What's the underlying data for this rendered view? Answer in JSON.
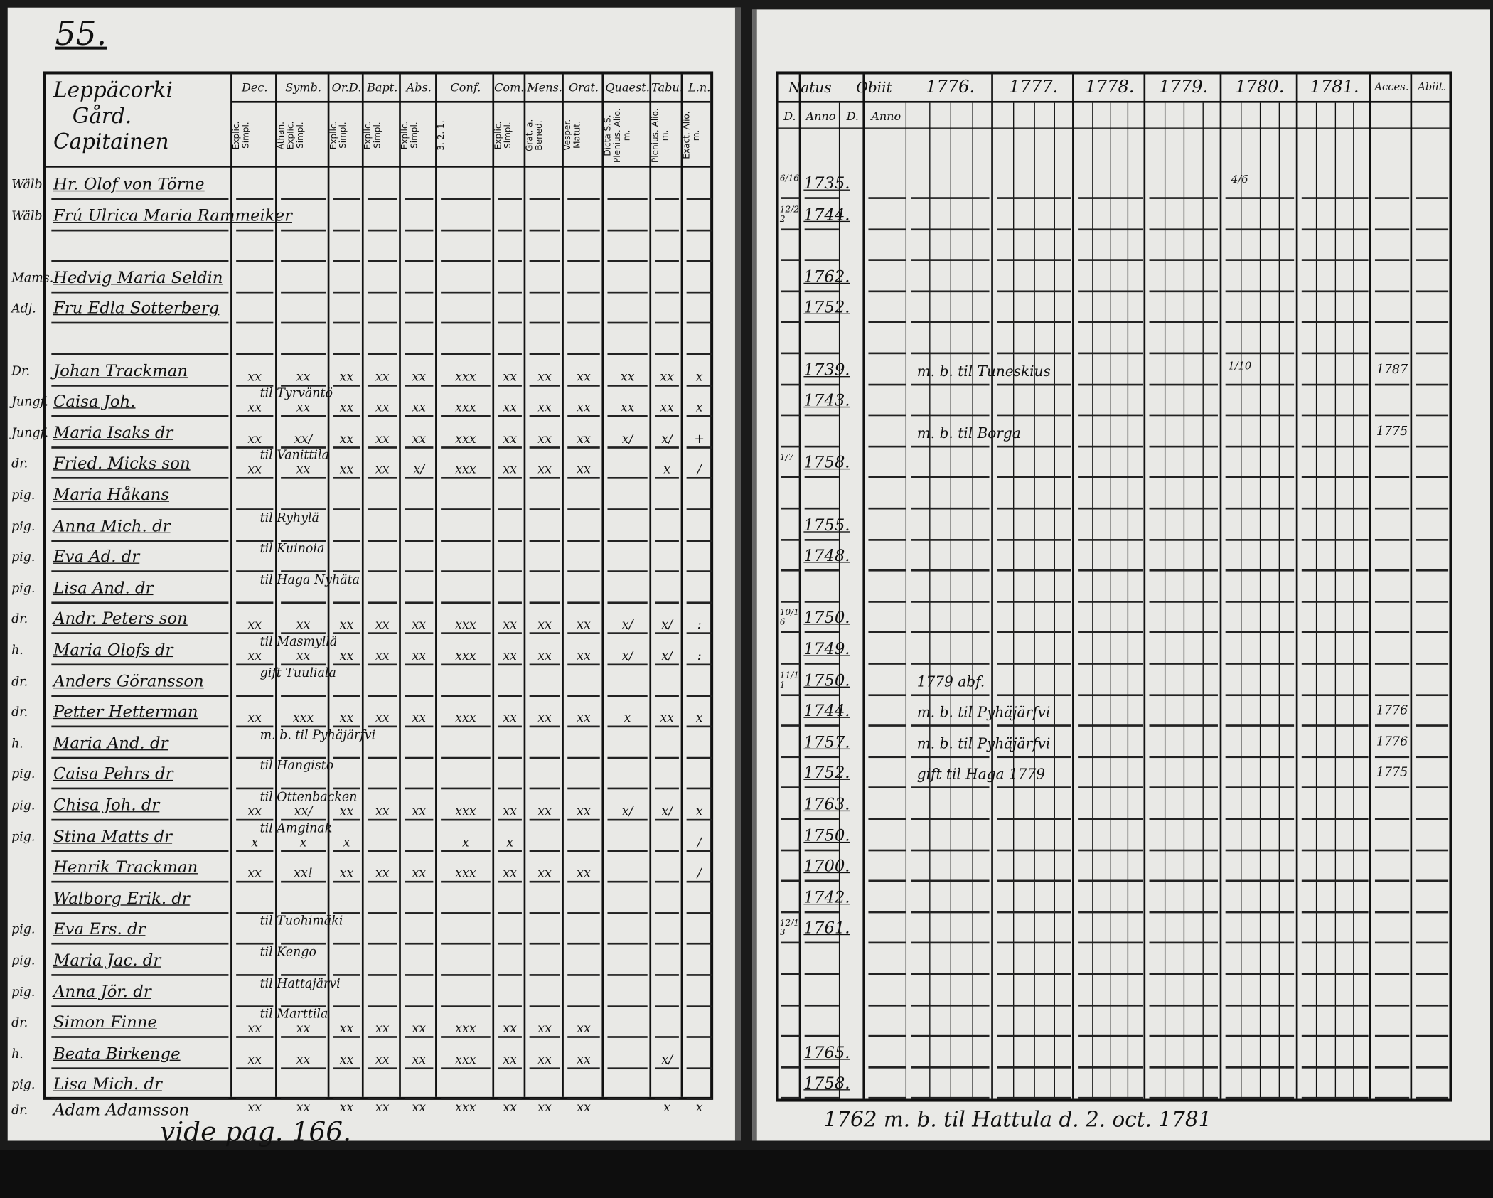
{
  "left_page": {
    "page_number": "55.",
    "title_lines": [
      "Leppäcorki",
      "Gård.",
      "Capitainen"
    ],
    "columns": [
      {
        "head": "Dec.",
        "sub": "Explic. Simpl."
      },
      {
        "head": "Symb.",
        "sub": "Athan. Explic. Simpl."
      },
      {
        "head": "Or.D.",
        "sub": "Explic. Simpl."
      },
      {
        "head": "Bapt.",
        "sub": "Explic. Simpl."
      },
      {
        "head": "Abs.",
        "sub": "Explic. Simpl."
      },
      {
        "head": "Conf.",
        "sub": "3. 2. 1."
      },
      {
        "head": "Com.D.",
        "sub": "Explic. Simpl."
      },
      {
        "head": "Mens.",
        "sub": "Grat. a. Bened."
      },
      {
        "head": "Orat.",
        "sub": "Vesper. Matut."
      },
      {
        "head": "Quaest.",
        "sub": "Dicta S.S. Plenius. Alio. m."
      },
      {
        "head": "Tabu.",
        "sub": "Plenius. Alio. m."
      },
      {
        "head": "L.n.",
        "sub": "Exact. Alio. m."
      }
    ],
    "rows": [
      {
        "prefix": "Wälb.",
        "name": "Hr. Olof von Törne",
        "marks": [
          "",
          "",
          "",
          "",
          "",
          "",
          "",
          "",
          "",
          "",
          "",
          ""
        ],
        "note": ""
      },
      {
        "prefix": "Wälb.",
        "name": "Frú Ulrica Maria Rammeiker",
        "marks": [
          "",
          "",
          "",
          "",
          "",
          "",
          "",
          "",
          "",
          "",
          "",
          ""
        ],
        "note": ""
      },
      {
        "prefix": "",
        "name": "",
        "marks": [
          "",
          "",
          "",
          "",
          "",
          "",
          "",
          "",
          "",
          "",
          "",
          ""
        ],
        "note": ""
      },
      {
        "prefix": "Mams.",
        "name": "Hedvig Maria Seldin",
        "marks": [
          "",
          "",
          "",
          "",
          "",
          "",
          "",
          "",
          "",
          "",
          "",
          ""
        ],
        "note": ""
      },
      {
        "prefix": "Adj.",
        "name": "Fru Edla Sotterberg",
        "marks": [
          "",
          "",
          "",
          "",
          "",
          "",
          "",
          "",
          "",
          "",
          "",
          ""
        ],
        "note": ""
      },
      {
        "prefix": "",
        "name": "",
        "marks": [
          "",
          "",
          "",
          "",
          "",
          "",
          "",
          "",
          "",
          "",
          "",
          ""
        ],
        "note": ""
      },
      {
        "prefix": "Dr.",
        "name": "Johan Trackman",
        "marks": [
          "xx",
          "xx",
          "xx",
          "xx",
          "xx",
          "xxx",
          "xx",
          "xx",
          "xx",
          "xx",
          "xx",
          "x"
        ],
        "note": ""
      },
      {
        "prefix": "Jungf.",
        "name": "Caisa Joh.",
        "marks": [
          "xx",
          "xx",
          "xx",
          "xx",
          "xx",
          "xxx",
          "xx",
          "xx",
          "xx",
          "xx",
          "xx",
          "x"
        ],
        "note": "til Tyrväntö"
      },
      {
        "prefix": "Jungf.",
        "name": "Maria Isaks dr",
        "marks": [
          "xx",
          "xx/",
          "xx",
          "xx",
          "xx",
          "xxx",
          "xx",
          "xx",
          "xx",
          "x/",
          "x/",
          "+"
        ],
        "note": ""
      },
      {
        "prefix": "dr.",
        "name": "Fried. Micks son",
        "marks": [
          "xx",
          "xx",
          "xx",
          "xx",
          "x/",
          "xxx",
          "xx",
          "xx",
          "xx",
          "",
          "x",
          "/"
        ],
        "note": "til Vanittila"
      },
      {
        "prefix": "pig.",
        "name": "Maria Håkans",
        "marks": [
          "",
          "",
          "",
          "",
          "",
          "",
          "",
          "",
          "",
          "",
          "",
          ""
        ],
        "note": ""
      },
      {
        "prefix": "pig.",
        "name": "Anna Mich. dr",
        "marks": [
          "",
          "",
          "",
          "",
          "",
          "",
          "",
          "",
          "",
          "",
          "",
          ""
        ],
        "note": "til Ryhylä"
      },
      {
        "prefix": "pig.",
        "name": "Eva Ad. dr",
        "marks": [
          "",
          "",
          "",
          "",
          "",
          "",
          "",
          "",
          "",
          "",
          "",
          ""
        ],
        "note": "til Kuinoia"
      },
      {
        "prefix": "pig.",
        "name": "Lisa And. dr",
        "marks": [
          "",
          "",
          "",
          "",
          "",
          "",
          "",
          "",
          "",
          "",
          "",
          ""
        ],
        "note": "til Haga Nyhäta"
      },
      {
        "prefix": "dr.",
        "name": "Andr. Peters son",
        "marks": [
          "xx",
          "xx",
          "xx",
          "xx",
          "xx",
          "xxx",
          "xx",
          "xx",
          "xx",
          "x/",
          "x/",
          ":"
        ],
        "note": ""
      },
      {
        "prefix": "h.",
        "name": "Maria Olofs dr",
        "marks": [
          "xx",
          "xx",
          "xx",
          "xx",
          "xx",
          "xxx",
          "xx",
          "xx",
          "xx",
          "x/",
          "x/",
          ":"
        ],
        "note": "til Masmyllä"
      },
      {
        "prefix": "dr.",
        "name": "Anders Göransson",
        "marks": [
          "",
          "",
          "",
          "",
          "",
          "",
          "",
          "",
          "",
          "",
          "",
          ""
        ],
        "note": "gift Tuuliala"
      },
      {
        "prefix": "dr.",
        "name": "Petter Hetterman",
        "marks": [
          "xx",
          "xxx",
          "xx",
          "xx",
          "xx",
          "xxx",
          "xx",
          "xx",
          "xx",
          "x",
          "xx",
          "x"
        ],
        "note": ""
      },
      {
        "prefix": "h.",
        "name": "Maria And. dr",
        "marks": [
          "",
          "",
          "",
          "",
          "",
          "",
          "",
          "",
          "",
          "",
          "",
          ""
        ],
        "note": "m. b. til Pyhäjärfvi"
      },
      {
        "prefix": "pig.",
        "name": "Caisa Pehrs dr",
        "marks": [
          "",
          "",
          "",
          "",
          "",
          "",
          "",
          "",
          "",
          "",
          "",
          ""
        ],
        "note": "til Hangisto"
      },
      {
        "prefix": "pig.",
        "name": "Chisa Joh. dr",
        "marks": [
          "xx",
          "xx/",
          "xx",
          "xx",
          "xx",
          "xxx",
          "xx",
          "xx",
          "xx",
          "x/",
          "x/",
          "x"
        ],
        "note": "til Ottenbacken"
      },
      {
        "prefix": "pig.",
        "name": "Stina Matts dr",
        "marks": [
          "x",
          "x",
          "x",
          "",
          "",
          "x",
          "x",
          "",
          "",
          "",
          "",
          "/"
        ],
        "note": "til Amginak"
      },
      {
        "prefix": "",
        "name": "Henrik Trackman",
        "marks": [
          "xx",
          "xx!",
          "xx",
          "xx",
          "xx",
          "xxx",
          "xx",
          "xx",
          "xx",
          "",
          "",
          "/"
        ],
        "note": ""
      },
      {
        "prefix": "",
        "name": "Walborg Erik. dr",
        "marks": [
          "",
          "",
          "",
          "",
          "",
          "",
          "",
          "",
          "",
          "",
          "",
          ""
        ],
        "note": ""
      },
      {
        "prefix": "pig.",
        "name": "Eva Ers. dr",
        "marks": [
          "",
          "",
          "",
          "",
          "",
          "",
          "",
          "",
          "",
          "",
          "",
          ""
        ],
        "note": "til Tuohimäki"
      },
      {
        "prefix": "pig.",
        "name": "Maria Jac. dr",
        "marks": [
          "",
          "",
          "",
          "",
          "",
          "",
          "",
          "",
          "",
          "",
          "",
          ""
        ],
        "note": "til Kengo"
      },
      {
        "prefix": "pig.",
        "name": "Anna Jör. dr",
        "marks": [
          "",
          "",
          "",
          "",
          "",
          "",
          "",
          "",
          "",
          "",
          "",
          ""
        ],
        "note": "til Hattajärvi"
      },
      {
        "prefix": "dr.",
        "name": "Simon Finne",
        "marks": [
          "xx",
          "xx",
          "xx",
          "xx",
          "xx",
          "xxx",
          "xx",
          "xx",
          "xx",
          "",
          "",
          ""
        ],
        "note": "til Marttila"
      },
      {
        "prefix": "h.",
        "name": "Beata Birkenge",
        "marks": [
          "xx",
          "xx",
          "xx",
          "xx",
          "xx",
          "xxx",
          "xx",
          "xx",
          "xx",
          "",
          "x/",
          ""
        ],
        "note": ""
      },
      {
        "prefix": "pig.",
        "name": "Lisa Mich. dr",
        "marks": [
          "",
          "",
          "",
          "",
          "",
          "",
          "",
          "",
          "",
          "",
          "",
          ""
        ],
        "note": ""
      }
    ],
    "extra_row": {
      "prefix": "dr.",
      "name": "Adam Adamsson",
      "marks": [
        "xx",
        "xx",
        "xx",
        "xx",
        "xx",
        "xxx",
        "xx",
        "xx",
        "xx",
        "",
        "x",
        "x"
      ]
    },
    "footer": "vide pag. 166."
  },
  "right_page": {
    "columns": {
      "natus": "Natus",
      "obiit": "Obiit",
      "natus_sub": [
        "D.",
        "Anno"
      ],
      "obiit_sub": [
        "D.",
        "Anno"
      ],
      "years": [
        "1776.",
        "1777.",
        "1778.",
        "1779.",
        "1780.",
        "1781."
      ],
      "acces": "Acces.",
      "abiit": "Abiit."
    },
    "rows": [
      {
        "day": "6/16",
        "year": "1735.",
        "remark": "",
        "y1780": "4/6",
        "acces": ""
      },
      {
        "day": "12/22",
        "year": "1744.",
        "remark": "",
        "y1780": "",
        "acces": ""
      },
      {
        "day": "",
        "year": "",
        "remark": "",
        "y1780": "",
        "acces": ""
      },
      {
        "day": "",
        "year": "1762.",
        "remark": "",
        "y1780": "",
        "acces": ""
      },
      {
        "day": "",
        "year": "1752.",
        "remark": "",
        "y1780": "",
        "acces": ""
      },
      {
        "day": "",
        "year": "",
        "remark": "",
        "y1780": "",
        "acces": ""
      },
      {
        "day": "",
        "year": "1739.",
        "remark": "m. b. til Tuneskius",
        "y1780": "1/10",
        "acces": "1787"
      },
      {
        "day": "",
        "year": "1743.",
        "remark": "",
        "y1780": "",
        "acces": ""
      },
      {
        "day": "",
        "year": "",
        "remark": "m. b. til Borga",
        "y1780": "",
        "acces": "1775"
      },
      {
        "day": "1/7",
        "year": "1758.",
        "remark": "",
        "y1780": "",
        "acces": ""
      },
      {
        "day": "",
        "year": "",
        "remark": "",
        "y1780": "",
        "acces": ""
      },
      {
        "day": "",
        "year": "1755.",
        "remark": "",
        "y1780": "",
        "acces": ""
      },
      {
        "day": "",
        "year": "1748.",
        "remark": "",
        "y1780": "",
        "acces": ""
      },
      {
        "day": "",
        "year": "",
        "remark": "",
        "y1780": "",
        "acces": ""
      },
      {
        "day": "10/16",
        "year": "1750.",
        "remark": "",
        "y1780": "",
        "acces": ""
      },
      {
        "day": "",
        "year": "1749.",
        "remark": "",
        "y1780": "",
        "acces": ""
      },
      {
        "day": "11/11",
        "year": "1750.",
        "remark": "1779 abf.",
        "y1780": "",
        "acces": ""
      },
      {
        "day": "",
        "year": "1744.",
        "remark": "m. b. til Pyhäjärfvi",
        "y1780": "",
        "acces": "1776"
      },
      {
        "day": "",
        "year": "1757.",
        "remark": "m. b. til Pyhäjärfvi",
        "y1780": "",
        "acces": "1776"
      },
      {
        "day": "",
        "year": "1752.",
        "remark": "gift til Haga 1779",
        "y1780": "",
        "acces": "1775"
      },
      {
        "day": "",
        "year": "1763.",
        "remark": "",
        "y1780": "",
        "acces": ""
      },
      {
        "day": "",
        "year": "1750.",
        "remark": "",
        "y1780": "",
        "acces": ""
      },
      {
        "day": "",
        "year": "1700.",
        "remark": "",
        "y1780": "",
        "acces": ""
      },
      {
        "day": "",
        "year": "1742.",
        "remark": "",
        "y1780": "",
        "acces": ""
      },
      {
        "day": "12/13",
        "year": "1761.",
        "remark": "",
        "y1780": "",
        "acces": ""
      },
      {
        "day": "",
        "year": "",
        "remark": "",
        "y1780": "",
        "acces": ""
      },
      {
        "day": "",
        "year": "",
        "remark": "",
        "y1780": "",
        "acces": ""
      },
      {
        "day": "",
        "year": "",
        "remark": "",
        "y1780": "",
        "acces": ""
      },
      {
        "day": "",
        "year": "1765.",
        "remark": "",
        "y1780": "",
        "acces": ""
      },
      {
        "day": "",
        "year": "1758.",
        "remark": "",
        "y1780": "",
        "acces": ""
      }
    ],
    "footer": "1762 m. b. til Hattula d. 2. oct. 1781"
  }
}
